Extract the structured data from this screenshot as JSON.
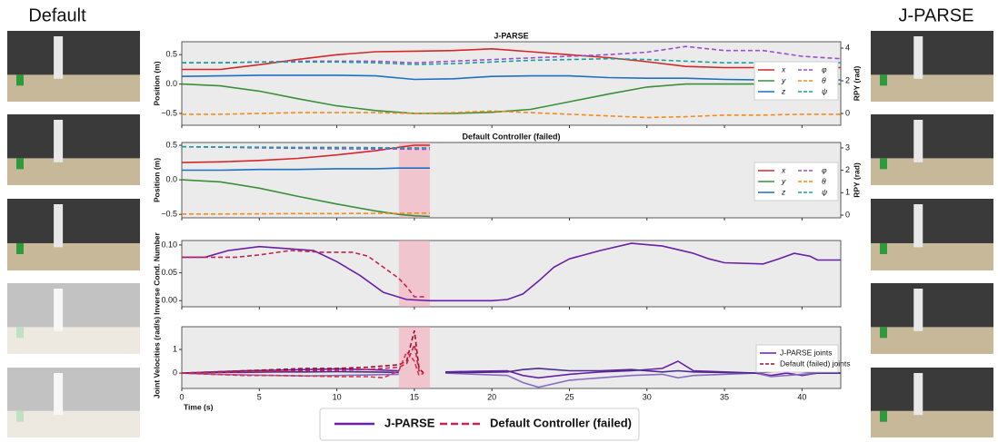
{
  "figure": {
    "left_title": "Default",
    "right_title": "J-PARSE",
    "xlabel": "Time (s)",
    "legend": [
      {
        "name": "J-PARSE",
        "color": "#6a1fa8",
        "dash": false
      },
      {
        "name": "Default Controller (failed)",
        "color": "#c8234f",
        "dash": true
      }
    ]
  },
  "chart_data": [
    {
      "type": "line",
      "title": "J-PARSE",
      "ylabel": "Position (m)",
      "y2label": "RPY (rad)",
      "xlim": [
        0,
        42.5
      ],
      "xticks": [
        0,
        5,
        10,
        15,
        20,
        25,
        30,
        35,
        40
      ],
      "ylim": [
        -0.7,
        0.72
      ],
      "yticks": [
        {
          "value": -0.5,
          "label": "−0.5"
        },
        {
          "value": 0,
          "label": "0.0"
        },
        0.5
      ],
      "y2lim": [
        -0.72,
        4.39
      ],
      "y2ticks": [
        0,
        2,
        4
      ],
      "grid": false,
      "legend": "upper right",
      "series": [
        {
          "name": "x",
          "color": "#d62728",
          "dash": false,
          "x": [
            0,
            2.5,
            5,
            7.5,
            10,
            12.5,
            15,
            17.5,
            20,
            22.5,
            25,
            27.5,
            30,
            32.5,
            35,
            37.5,
            40,
            42.5
          ],
          "values": [
            0.25,
            0.25,
            0.33,
            0.42,
            0.5,
            0.55,
            0.56,
            0.57,
            0.6,
            0.55,
            0.5,
            0.45,
            0.38,
            0.3,
            0.28,
            0.28,
            0.28,
            0.28
          ]
        },
        {
          "name": "y",
          "color": "#3a8f3a",
          "dash": false,
          "x": [
            0,
            2.5,
            5,
            7.5,
            10,
            12.5,
            15,
            17.5,
            20,
            22.5,
            25,
            27.5,
            30,
            32.5,
            35,
            37.5,
            40,
            42.5
          ],
          "values": [
            0,
            -0.03,
            -0.12,
            -0.25,
            -0.37,
            -0.45,
            -0.5,
            -0.5,
            -0.48,
            -0.43,
            -0.3,
            -0.17,
            -0.05,
            0,
            0,
            0,
            0,
            0
          ]
        },
        {
          "name": "z",
          "color": "#1f6fc4",
          "dash": false,
          "x": [
            0,
            2.5,
            5,
            7.5,
            10,
            12.5,
            15,
            17.5,
            20,
            22.5,
            25,
            27.5,
            30,
            32.5,
            35,
            37.5,
            40,
            42.5
          ],
          "values": [
            0.13,
            0.14,
            0.15,
            0.15,
            0.15,
            0.14,
            0.08,
            0.09,
            0.13,
            0.14,
            0.14,
            0.11,
            0.1,
            0.1,
            0.08,
            0.07,
            0.07,
            0.07
          ]
        },
        {
          "name": "φ",
          "color": "#9b4fcf",
          "dash": true,
          "axis": "y2",
          "x": [
            0,
            2.5,
            5,
            7.5,
            10,
            12.5,
            15,
            17.5,
            20,
            22.5,
            25,
            27.5,
            30,
            32.5,
            35,
            37.5,
            40,
            42.5
          ],
          "values": [
            3.1,
            3.1,
            3.15,
            3.2,
            3.2,
            3.2,
            3.1,
            3.2,
            3.3,
            3.4,
            3.5,
            3.6,
            3.75,
            4.1,
            3.85,
            3.85,
            3.5,
            3.35
          ]
        },
        {
          "name": "θ",
          "color": "#f28c1e",
          "dash": true,
          "axis": "y2",
          "x": [
            0,
            2.5,
            5,
            7.5,
            10,
            12.5,
            15,
            17.5,
            20,
            22.5,
            25,
            27.5,
            30,
            32.5,
            35,
            37.5,
            40,
            42.5
          ],
          "values": [
            -0.05,
            -0.05,
            0,
            0.05,
            0.05,
            0.05,
            0,
            0.05,
            0.15,
            0.05,
            -0.05,
            -0.15,
            -0.25,
            -0.2,
            -0.1,
            -0.1,
            -0.05,
            -0.05
          ]
        },
        {
          "name": "ψ",
          "color": "#1c9e9e",
          "dash": true,
          "axis": "y2",
          "x": [
            0,
            2.5,
            5,
            7.5,
            10,
            12.5,
            15,
            17.5,
            20,
            22.5,
            25,
            27.5,
            30,
            32.5,
            35,
            37.5,
            40,
            42.5
          ],
          "values": [
            3.1,
            3.1,
            3.15,
            3.15,
            3.15,
            3.1,
            3.0,
            3.05,
            3.15,
            3.25,
            3.3,
            3.35,
            3.3,
            3.2,
            3.1,
            3.1,
            3.1,
            3.1
          ]
        }
      ]
    },
    {
      "type": "line",
      "title": "Default Controller (failed)",
      "ylabel": "Position (m)",
      "y2label": "RPY (rad)",
      "xlim": [
        0,
        42.5
      ],
      "xticks": [
        0,
        5,
        10,
        15,
        20,
        25,
        30,
        35,
        40
      ],
      "ylim": [
        -0.55,
        0.54
      ],
      "yticks": [
        {
          "value": -0.5,
          "label": "−0.5"
        },
        {
          "value": 0,
          "label": "0.0"
        },
        0.5
      ],
      "y2lim": [
        -0.12,
        3.24
      ],
      "y2ticks": [
        0,
        1,
        2,
        3
      ],
      "grid": false,
      "legend": "upper right",
      "highlight": [
        14,
        16
      ],
      "highlight_color": "#f4a6b4",
      "series": [
        {
          "name": "x",
          "color": "#d62728",
          "dash": false,
          "x": [
            0,
            2.5,
            5,
            7.5,
            10,
            12.5,
            14,
            15,
            16
          ],
          "values": [
            0.25,
            0.26,
            0.28,
            0.31,
            0.36,
            0.42,
            0.47,
            0.5,
            0.5
          ]
        },
        {
          "name": "y",
          "color": "#3a8f3a",
          "dash": false,
          "x": [
            0,
            2.5,
            5,
            7.5,
            10,
            12.5,
            14,
            15,
            16
          ],
          "values": [
            0,
            -0.03,
            -0.12,
            -0.24,
            -0.35,
            -0.45,
            -0.5,
            -0.52,
            -0.53
          ]
        },
        {
          "name": "z",
          "color": "#1f6fc4",
          "dash": false,
          "x": [
            0,
            2.5,
            5,
            7.5,
            10,
            12.5,
            14,
            15,
            16
          ],
          "values": [
            0.14,
            0.14,
            0.15,
            0.15,
            0.16,
            0.16,
            0.17,
            0.17,
            0.17
          ]
        },
        {
          "name": "φ",
          "color": "#9b4fcf",
          "dash": true,
          "axis": "y2",
          "x": [
            0,
            2.5,
            5,
            7.5,
            10,
            12.5,
            14,
            15,
            16
          ],
          "values": [
            3.05,
            3.03,
            3.0,
            2.98,
            2.96,
            2.95,
            2.95,
            2.94,
            2.94
          ]
        },
        {
          "name": "θ",
          "color": "#f28c1e",
          "dash": true,
          "axis": "y2",
          "x": [
            0,
            2.5,
            5,
            7.5,
            10,
            12.5,
            14,
            15,
            16
          ],
          "values": [
            0.05,
            0.05,
            0.06,
            0.07,
            0.07,
            0.08,
            0.08,
            0.09,
            0.09
          ]
        },
        {
          "name": "ψ",
          "color": "#1c9e9e",
          "dash": true,
          "axis": "y2",
          "x": [
            0,
            2.5,
            5,
            7.5,
            10,
            12.5,
            14,
            15,
            16
          ],
          "values": [
            3.05,
            3.04,
            3.03,
            3.02,
            3.02,
            3.01,
            3.0,
            3.0,
            3.0
          ]
        }
      ]
    },
    {
      "type": "line",
      "ylabel": "Inverse Cond. Number",
      "xlim": [
        0,
        42.5
      ],
      "xticks": [
        0,
        5,
        10,
        15,
        20,
        25,
        30,
        35,
        40
      ],
      "ylim": [
        -0.011,
        0.108
      ],
      "yticks": [
        {
          "value": 0,
          "label": "0.00"
        },
        {
          "value": 0.05,
          "label": "0.05"
        },
        {
          "value": 0.1,
          "label": "0.10"
        }
      ],
      "grid": false,
      "highlight": [
        14,
        16
      ],
      "highlight_color": "#f4a6b4",
      "series": [
        {
          "color": "#6a1fa8",
          "dash": false,
          "x": [
            0,
            1.5,
            3,
            5,
            7,
            8.5,
            10,
            11.5,
            13,
            14.5,
            16,
            20,
            21,
            22,
            23,
            24,
            25,
            27,
            29,
            31,
            33,
            34,
            35,
            37.5,
            38.5,
            39.5,
            40.5,
            41,
            42.5
          ],
          "values": [
            0.078,
            0.078,
            0.09,
            0.097,
            0.093,
            0.09,
            0.07,
            0.045,
            0.015,
            0.002,
            0,
            0,
            0.002,
            0.012,
            0.035,
            0.06,
            0.075,
            0.09,
            0.103,
            0.098,
            0.085,
            0.075,
            0.068,
            0.066,
            0.075,
            0.085,
            0.08,
            0.073,
            0.073
          ]
        },
        {
          "color": "#c8234f",
          "dash": true,
          "x": [
            0,
            2,
            3.5,
            5,
            7,
            9,
            11,
            12,
            13,
            14,
            14.5,
            15,
            15.7
          ],
          "values": [
            0.078,
            0.078,
            0.078,
            0.082,
            0.09,
            0.087,
            0.087,
            0.08,
            0.06,
            0.04,
            0.025,
            0.007,
            0.007
          ]
        }
      ]
    },
    {
      "type": "line",
      "ylabel": "Joint Velocities (rad/s)",
      "xlabel": "Time (s)",
      "xlim": [
        0,
        42.5
      ],
      "xticks": [
        0,
        5,
        10,
        15,
        20,
        25,
        30,
        35,
        40
      ],
      "ylim": [
        -0.65,
        1.96
      ],
      "yticks": [
        0,
        1
      ],
      "grid": false,
      "legend": "upper right",
      "highlight": [
        14,
        16
      ],
      "highlight_color": "#f4a6b4",
      "series": [
        {
          "name": "J-PARSE joints",
          "color": "#6a1fa8",
          "dash": false,
          "x": [
            0,
            2,
            4,
            6,
            8,
            10,
            12,
            14,
            15.5,
            17,
            19,
            21,
            22,
            23,
            25,
            27,
            29,
            31,
            32,
            33,
            35,
            37,
            38,
            39,
            40,
            41,
            42.5
          ],
          "values": [
            0,
            0.05,
            0.1,
            0.12,
            0.15,
            0.18,
            0.15,
            0.1,
            null,
            0.05,
            0.08,
            0.1,
            -0.1,
            -0.2,
            -0.05,
            0.05,
            0.1,
            0.2,
            0.5,
            0.1,
            0.05,
            0,
            -0.1,
            0,
            -0.1,
            0,
            0
          ]
        },
        {
          "color": "#8a6bc4",
          "dash": false,
          "x": [
            0,
            2,
            4,
            6,
            8,
            10,
            12,
            14,
            15.5,
            17,
            19,
            21,
            22,
            23,
            25,
            27,
            29,
            31,
            32,
            33,
            35,
            37,
            38,
            39,
            40,
            41,
            42.5
          ],
          "values": [
            0,
            -0.05,
            -0.08,
            -0.1,
            -0.12,
            -0.1,
            -0.08,
            -0.05,
            null,
            0,
            -0.05,
            -0.1,
            -0.4,
            -0.6,
            -0.3,
            -0.2,
            -0.1,
            -0.05,
            -0.2,
            -0.1,
            -0.05,
            0,
            -0.15,
            -0.1,
            -0.05,
            0,
            0
          ]
        },
        {
          "color": "#4a2a8c",
          "dash": false,
          "x": [
            0,
            2,
            4,
            6,
            8,
            10,
            12,
            14,
            15.5,
            17,
            19,
            21,
            22,
            23,
            25,
            27,
            29,
            31,
            32,
            33,
            35,
            37,
            38,
            39,
            40,
            41,
            42.5
          ],
          "values": [
            0,
            0.02,
            0.03,
            0.05,
            0.05,
            0.06,
            0.05,
            0.03,
            null,
            0.02,
            0.03,
            0.05,
            0.15,
            0.2,
            0.1,
            0.1,
            0.15,
            0.05,
            0.1,
            0.05,
            0.02,
            0,
            0.05,
            0.1,
            0.05,
            0,
            0
          ]
        },
        {
          "name": "Default (failed) joints",
          "color": "#9c1030",
          "dash": true,
          "x": [
            0,
            2,
            4,
            6,
            8,
            10,
            12,
            13,
            14,
            14.5,
            15,
            15.3,
            15.6
          ],
          "values": [
            0,
            0.05,
            0.1,
            0.15,
            0.2,
            0.2,
            0.25,
            0.3,
            0.35,
            0.5,
            1.8,
            0.2,
            0
          ]
        },
        {
          "color": "#e0304a",
          "dash": true,
          "x": [
            0,
            2,
            4,
            6,
            8,
            10,
            12,
            13,
            14,
            14.5,
            15,
            15.3,
            15.6
          ],
          "values": [
            0,
            -0.05,
            -0.1,
            -0.1,
            -0.12,
            -0.15,
            -0.15,
            -0.2,
            0.1,
            0.9,
            0.5,
            -0.1,
            0
          ]
        },
        {
          "color": "#c8234f",
          "dash": true,
          "x": [
            0,
            2,
            4,
            6,
            8,
            10,
            12,
            13,
            14,
            14.5,
            15,
            15.3,
            15.6
          ],
          "values": [
            0,
            0.03,
            0.05,
            0.08,
            0.1,
            0.12,
            0.15,
            0.2,
            0.25,
            0.4,
            1.2,
            0.1,
            0
          ]
        }
      ]
    }
  ]
}
